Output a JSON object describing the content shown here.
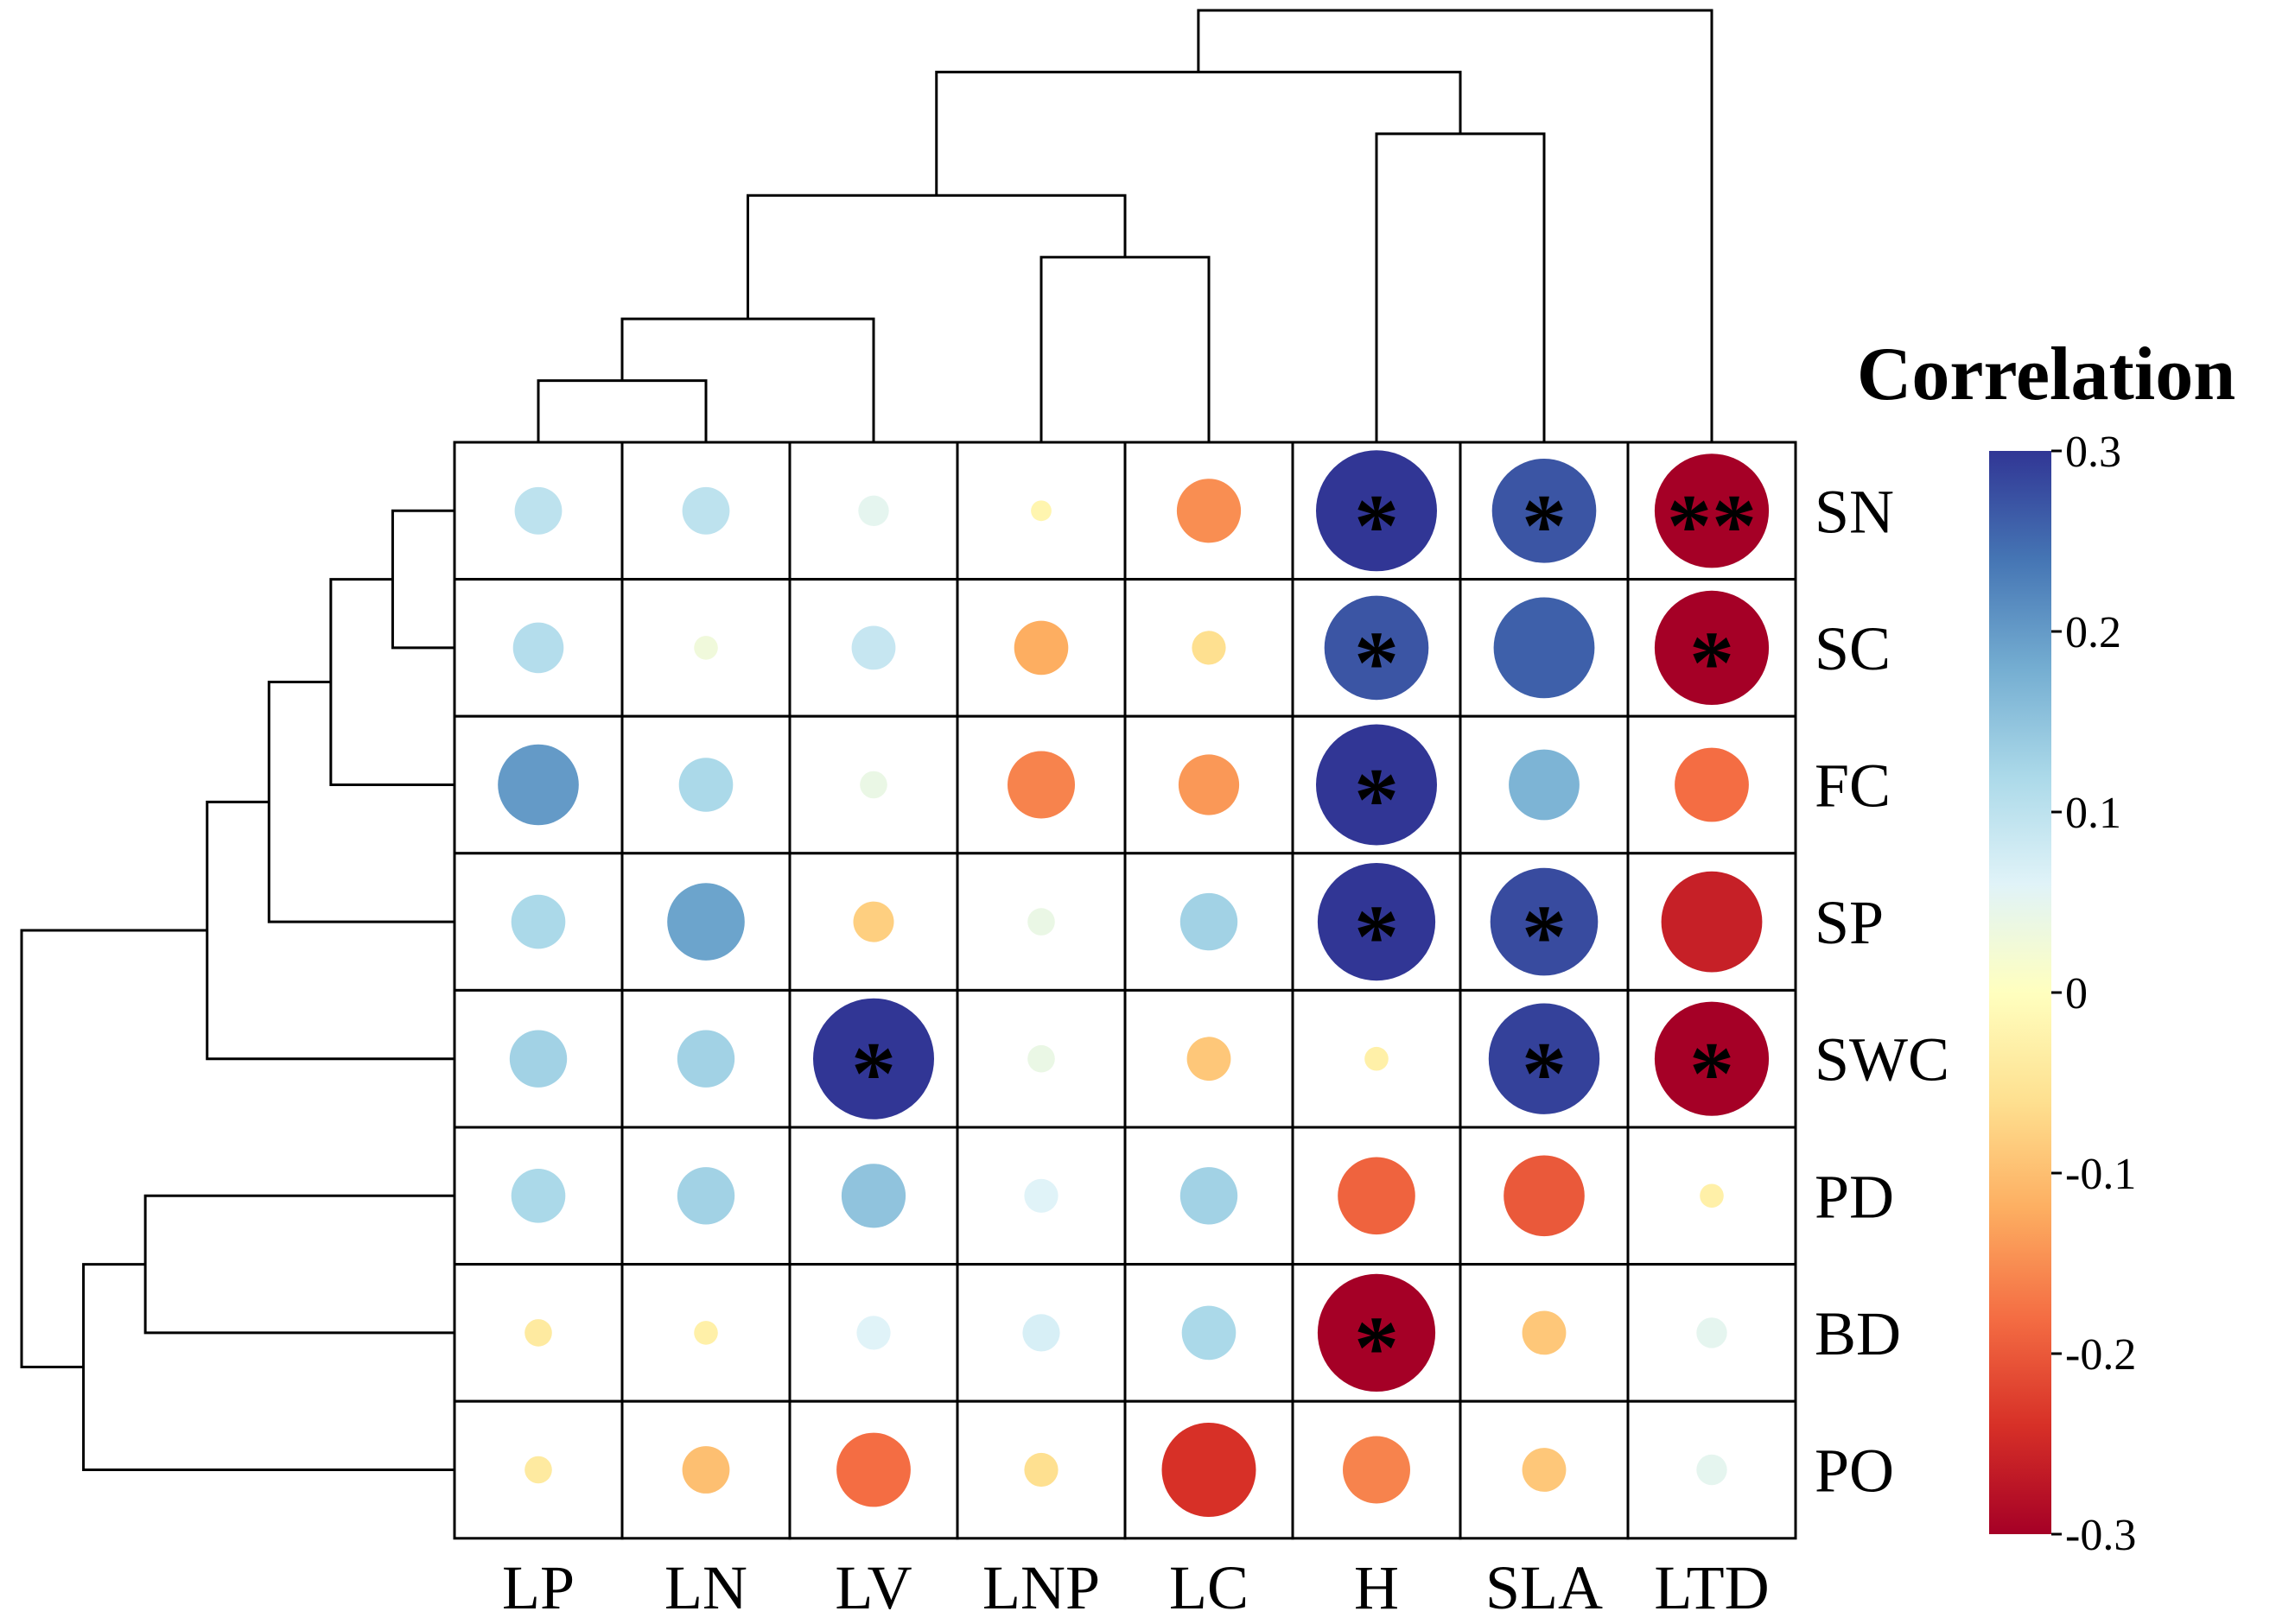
{
  "chart_data": {
    "type": "heatmap",
    "subtype": "clustered-correlation-bubble",
    "legend_title": "Correlation",
    "columns": [
      "LP",
      "LN",
      "LV",
      "LNP",
      "LC",
      "H",
      "SLA",
      "LTD"
    ],
    "rows": [
      "SN",
      "SC",
      "FC",
      "SP",
      "SWC",
      "PD",
      "BD",
      "PO"
    ],
    "values": [
      [
        0.1,
        0.1,
        0.05,
        -0.02,
        -0.15,
        0.32,
        0.27,
        -0.3
      ],
      [
        0.11,
        0.03,
        0.09,
        -0.12,
        -0.06,
        0.27,
        0.26,
        -0.3
      ],
      [
        0.2,
        0.12,
        0.04,
        -0.16,
        -0.14,
        0.32,
        0.17,
        -0.18
      ],
      [
        0.12,
        0.19,
        -0.08,
        0.04,
        0.13,
        0.31,
        0.28,
        -0.26
      ],
      [
        0.13,
        0.13,
        0.32,
        0.04,
        -0.09,
        -0.03,
        0.29,
        -0.3
      ],
      [
        0.12,
        0.13,
        0.15,
        0.06,
        0.13,
        -0.19,
        -0.2,
        -0.03
      ],
      [
        -0.04,
        -0.03,
        0.06,
        0.07,
        0.12,
        -0.31,
        -0.09,
        0.05
      ],
      [
        -0.04,
        -0.1,
        -0.18,
        -0.06,
        -0.24,
        -0.16,
        -0.09,
        0.05
      ]
    ],
    "significance": [
      [
        "",
        "",
        "",
        "",
        "",
        "*",
        "*",
        "**"
      ],
      [
        "",
        "",
        "",
        "",
        "",
        "*",
        "",
        "*"
      ],
      [
        "",
        "",
        "",
        "",
        "",
        "*",
        "",
        ""
      ],
      [
        "",
        "",
        "",
        "",
        "",
        "*",
        "*",
        ""
      ],
      [
        "",
        "",
        "*",
        "",
        "",
        "",
        "*",
        "*"
      ],
      [
        "",
        "",
        "",
        "",
        "",
        "",
        "",
        ""
      ],
      [
        "",
        "",
        "",
        "",
        "",
        "*",
        "",
        ""
      ],
      [
        "",
        "",
        "",
        "",
        "",
        "",
        "",
        ""
      ]
    ],
    "colorbar": {
      "range": [
        -0.3,
        0.3
      ],
      "ticks": [
        0.3,
        0.2,
        0.1,
        0,
        -0.1,
        -0.2,
        -0.3
      ],
      "tick_labels": [
        "0.3",
        "0.2",
        "0.1",
        "0",
        "-0.1",
        "-0.2",
        "-0.3"
      ],
      "colors": [
        "#a50026",
        "#d73027",
        "#f46d43",
        "#fdae61",
        "#fee090",
        "#ffffbf",
        "#e0f3f8",
        "#abd9e9",
        "#74add1",
        "#4575b4",
        "#313695"
      ]
    },
    "column_dendrogram": [
      [
        0,
        1
      ],
      [
        8,
        2
      ],
      [
        3,
        4
      ],
      [
        9,
        10
      ],
      [
        5,
        6
      ],
      [
        12,
        11
      ],
      [
        13,
        7
      ]
    ],
    "row_dendrogram": [
      [
        0,
        1
      ],
      [
        8,
        2
      ],
      [
        9,
        3
      ],
      [
        10,
        4
      ],
      [
        5,
        6
      ],
      [
        12,
        7
      ],
      [
        11,
        13
      ]
    ]
  }
}
